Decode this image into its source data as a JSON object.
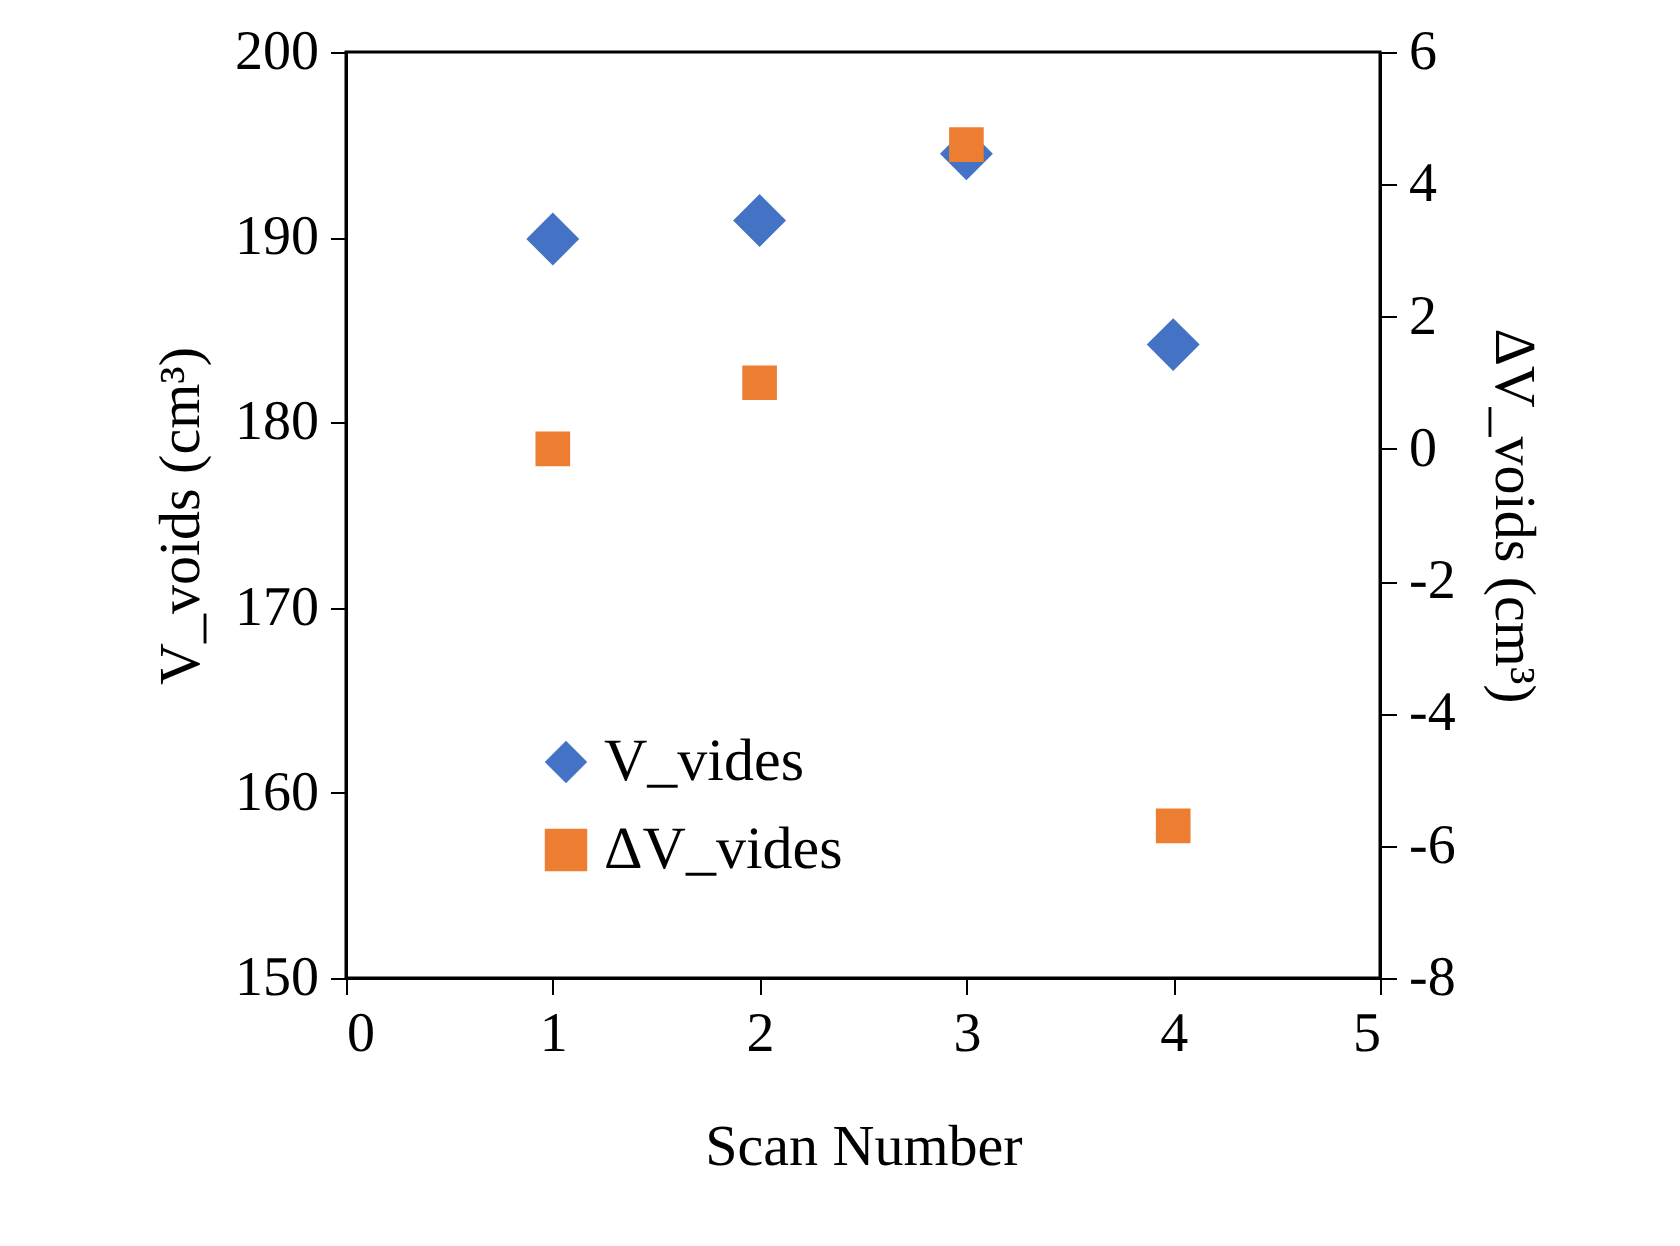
{
  "chart_data": {
    "type": "scatter",
    "xlabel": "Scan Number",
    "ylabel": "V_voids (cm³)",
    "y2label": "ΔV_voids (cm³)",
    "x": [
      1,
      2,
      3,
      4
    ],
    "series": [
      {
        "name": "V_vides",
        "color": "#4472c4",
        "marker": "diamond",
        "values": [
          189.9,
          190.9,
          194.5,
          184.2
        ]
      },
      {
        "name": "ΔV_vides",
        "color": "#ed7d31",
        "marker": "square",
        "axis": "y2",
        "values": [
          0.0,
          1.0,
          4.6,
          -5.7
        ]
      }
    ],
    "xlim": [
      0,
      5
    ],
    "xticks": [
      0,
      1,
      2,
      3,
      4,
      5
    ],
    "ylim": [
      150,
      200
    ],
    "yticks": [
      150,
      160,
      170,
      180,
      190,
      200
    ],
    "y2lim": [
      -8,
      6
    ],
    "y2ticks": [
      -8,
      -6,
      -4,
      -2,
      0,
      2,
      4,
      6
    ],
    "grid": false,
    "legend": "bottom left"
  }
}
